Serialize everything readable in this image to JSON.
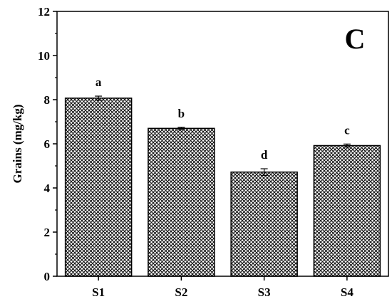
{
  "chart_data": {
    "type": "bar",
    "panel_label": "C",
    "categories": [
      "S1",
      "S2",
      "S3",
      "S4"
    ],
    "values": [
      8.07,
      6.7,
      4.72,
      5.92
    ],
    "errors": [
      0.09,
      0.05,
      0.15,
      0.07
    ],
    "significance": [
      "a",
      "b",
      "d",
      "c"
    ],
    "ylabel": "Grains (mg/kg)",
    "xlabel": "",
    "ylim": [
      0,
      12
    ],
    "yticks": [
      0,
      2,
      4,
      6,
      8,
      10,
      12
    ],
    "bar_fill": "crosshatch",
    "bar_color": "#000000",
    "grid": false,
    "legend": "none"
  }
}
